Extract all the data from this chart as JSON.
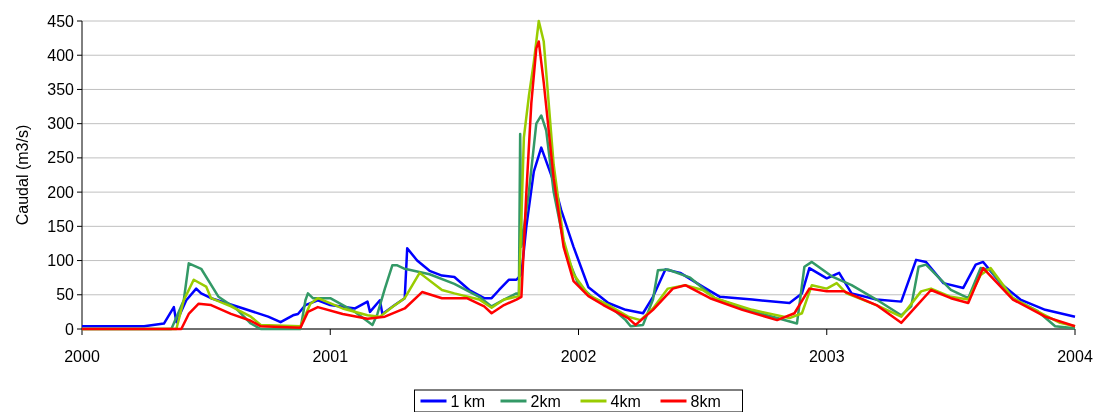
{
  "chart_data": {
    "type": "line",
    "ylabel": "Caudal (m3/s)",
    "xlim": [
      2000,
      2004
    ],
    "xticks": [
      2000,
      2001,
      2002,
      2003,
      2004
    ],
    "ylim": [
      0,
      450
    ],
    "yticks": [
      0,
      50,
      100,
      150,
      200,
      250,
      300,
      350,
      400,
      450
    ],
    "grid": "y",
    "legend": "bottom",
    "marker": "none",
    "line_style": "solid",
    "series": [
      {
        "name": "1 km",
        "color": "#0000ff",
        "x": [
          2000,
          2000.25,
          2000.33,
          2000.37,
          2000.38,
          2000.42,
          2000.46,
          2000.48,
          2000.52,
          2000.65,
          2000.75,
          2000.8,
          2000.85,
          2000.87,
          2000.9,
          2000.95,
          2001,
          2001.1,
          2001.15,
          2001.16,
          2001.2,
          2001.21,
          2001.26,
          2001.3,
          2001.31,
          2001.35,
          2001.4,
          2001.45,
          2001.5,
          2001.56,
          2001.62,
          2001.65,
          2001.68,
          2001.72,
          2001.75,
          2001.77,
          2001.79,
          2001.82,
          2001.85,
          2001.9,
          2001.93,
          2001.98,
          2002.04,
          2002.12,
          2002.19,
          2002.26,
          2002.3,
          2002.35,
          2002.41,
          2002.5,
          2002.57,
          2002.7,
          2002.85,
          2002.9,
          2002.93,
          2003,
          2003.05,
          2003.1,
          2003.2,
          2003.3,
          2003.36,
          2003.4,
          2003.47,
          2003.55,
          2003.6,
          2003.63,
          2003.7,
          2003.78,
          2003.88,
          2004
        ],
        "values": [
          4,
          4,
          8,
          32,
          10,
          42,
          59,
          52,
          45,
          30,
          18,
          10,
          20,
          22,
          35,
          42,
          35,
          30,
          40,
          25,
          42,
          22,
          35,
          45,
          118,
          100,
          85,
          78,
          76,
          57,
          45,
          45,
          57,
          72,
          72,
          80,
          150,
          230,
          265,
          215,
          174,
          120,
          61,
          38,
          28,
          23,
          47,
          87,
          82,
          62,
          47,
          43,
          38,
          52,
          89,
          74,
          82,
          52,
          43,
          40,
          101,
          98,
          67,
          60,
          94,
          98,
          67,
          43,
          28,
          18
        ]
      },
      {
        "name": "2km",
        "color": "#339966",
        "x": [
          2000,
          2000.36,
          2000.41,
          2000.43,
          2000.48,
          2000.55,
          2000.62,
          2000.68,
          2000.72,
          2000.88,
          2000.9,
          2000.91,
          2000.93,
          2001,
          2001.1,
          2001.17,
          2001.19,
          2001.22,
          2001.25,
          2001.27,
          2001.3,
          2001.4,
          2001.5,
          2001.6,
          2001.65,
          2001.7,
          2001.75,
          2001.76,
          2001.765,
          2001.77,
          2001.8,
          2001.83,
          2001.85,
          2001.87,
          2001.9,
          2001.95,
          2002,
          2002.06,
          2002.12,
          2002.19,
          2002.21,
          2002.26,
          2002.3,
          2002.32,
          2002.36,
          2002.45,
          2002.55,
          2002.7,
          2002.8,
          2002.88,
          2002.91,
          2002.94,
          2003.02,
          2003.1,
          2003.2,
          2003.3,
          2003.34,
          2003.37,
          2003.4,
          2003.5,
          2003.57,
          2003.62,
          2003.66,
          2003.75,
          2003.85,
          2003.92,
          2004
        ],
        "values": [
          0,
          0,
          42,
          96,
          88,
          47,
          30,
          8,
          0,
          0,
          42,
          52,
          45,
          45,
          25,
          6,
          22,
          59,
          93,
          93,
          88,
          80,
          66,
          47,
          33,
          43,
          52,
          50,
          285,
          120,
          200,
          300,
          312,
          290,
          200,
          110,
          65,
          45,
          35,
          13,
          4,
          6,
          43,
          86,
          87,
          75,
          45,
          26,
          16,
          8,
          91,
          98,
          77,
          64,
          43,
          20,
          33,
          91,
          94,
          57,
          45,
          89,
          86,
          45,
          26,
          4,
          1
        ]
      },
      {
        "name": "4km",
        "color": "#99cc00",
        "x": [
          2000,
          2000.38,
          2000.41,
          2000.45,
          2000.5,
          2000.52,
          2000.6,
          2000.68,
          2000.72,
          2000.88,
          2000.92,
          2000.95,
          2001.05,
          2001.15,
          2001.2,
          2001.25,
          2001.3,
          2001.36,
          2001.45,
          2001.5,
          2001.6,
          2001.65,
          2001.7,
          2001.76,
          2001.78,
          2001.8,
          2001.82,
          2001.84,
          2001.86,
          2001.9,
          2001.94,
          2001.98,
          2002.04,
          2002.12,
          2002.2,
          2002.25,
          2002.3,
          2002.36,
          2002.43,
          2002.5,
          2002.55,
          2002.7,
          2002.85,
          2002.9,
          2002.94,
          2003,
          2003.04,
          2003.08,
          2003.2,
          2003.3,
          2003.38,
          2003.42,
          2003.5,
          2003.57,
          2003.62,
          2003.66,
          2003.75,
          2003.88,
          2003.94,
          2004
        ],
        "values": [
          0,
          0,
          42,
          72,
          62,
          45,
          33,
          18,
          6,
          4,
          37,
          45,
          30,
          20,
          18,
          32,
          45,
          82,
          57,
          52,
          43,
          31,
          43,
          48,
          280,
          340,
          390,
          450,
          420,
          240,
          130,
          80,
          50,
          35,
          18,
          13,
          30,
          59,
          64,
          57,
          45,
          28,
          16,
          23,
          64,
          59,
          67,
          52,
          35,
          18,
          55,
          59,
          47,
          43,
          79,
          89,
          45,
          20,
          9,
          4
        ]
      },
      {
        "name": "8km",
        "color": "#ff0000",
        "x": [
          2000,
          2000.4,
          2000.43,
          2000.47,
          2000.52,
          2000.6,
          2000.68,
          2000.72,
          2000.88,
          2000.91,
          2000.95,
          2001.05,
          2001.15,
          2001.22,
          2001.3,
          2001.37,
          2001.45,
          2001.55,
          2001.62,
          2001.65,
          2001.7,
          2001.75,
          2001.77,
          2001.79,
          2001.81,
          2001.83,
          2001.84,
          2001.86,
          2001.9,
          2001.94,
          2001.98,
          2002.04,
          2002.1,
          2002.2,
          2002.23,
          2002.3,
          2002.38,
          2002.43,
          2002.53,
          2002.66,
          2002.8,
          2002.87,
          2002.93,
          2003,
          2003.07,
          2003.2,
          2003.3,
          2003.36,
          2003.42,
          2003.5,
          2003.57,
          2003.63,
          2003.75,
          2003.88,
          2004
        ],
        "values": [
          0,
          0,
          22,
          37,
          35,
          22,
          12,
          4,
          2,
          25,
          32,
          22,
          15,
          18,
          30,
          54,
          45,
          45,
          33,
          23,
          35,
          43,
          47,
          200,
          330,
          410,
          420,
          360,
          220,
          120,
          70,
          48,
          35,
          16,
          6,
          28,
          59,
          64,
          45,
          28,
          13,
          23,
          59,
          55,
          55,
          35,
          9,
          33,
          57,
          45,
          38,
          89,
          43,
          18,
          4
        ]
      }
    ]
  }
}
